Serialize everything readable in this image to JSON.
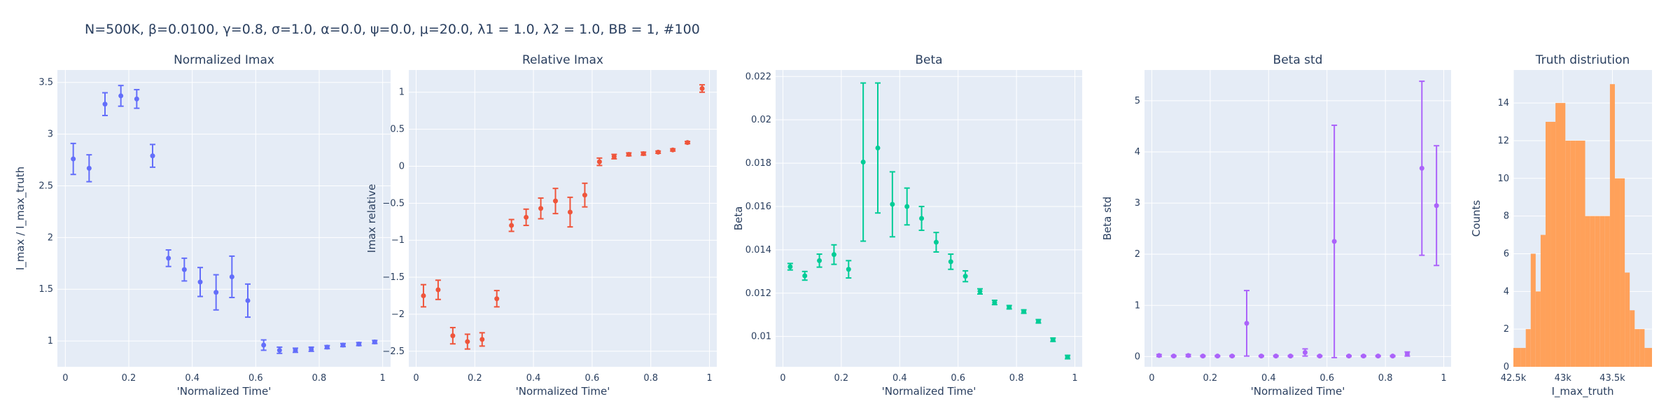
{
  "title": "N=500K, β=0.0100, γ=0.8, σ=1.0,  α=0.0, ψ=0.0, μ=20.0, λ1 = 1.0, λ2 = 1.0, BB = 1, #100",
  "colors": {
    "blue": "#636efa",
    "red": "#ef553b",
    "green": "#00cc96",
    "purple": "#ab63fa",
    "orange": "#ffa15a",
    "plot_bg": "#e5ecf6",
    "grid": "#ffffff",
    "text": "#2a3f5f"
  },
  "chart_data": [
    {
      "type": "scatter",
      "title": "Normalized Imax",
      "xlabel": "'Normalized Time'",
      "ylabel": "I_max / I_max_truth",
      "color": "blue",
      "xlim": [
        -0.025,
        1.025
      ],
      "ylim": [
        0.75,
        3.62
      ],
      "xticks": [
        0,
        0.2,
        0.4,
        0.6,
        0.8,
        1
      ],
      "xticklabels": [
        "0",
        "0.2",
        "0.4",
        "0.6",
        "0.8",
        "1"
      ],
      "yticks": [
        1,
        1.5,
        2,
        2.5,
        3,
        3.5
      ],
      "yticklabels": [
        "1",
        "1.5",
        "2",
        "2.5",
        "3",
        "3.5"
      ],
      "x": [
        0.025,
        0.075,
        0.125,
        0.175,
        0.225,
        0.275,
        0.325,
        0.375,
        0.425,
        0.475,
        0.525,
        0.575,
        0.625,
        0.675,
        0.725,
        0.775,
        0.825,
        0.875,
        0.925,
        0.975
      ],
      "y": [
        2.76,
        2.67,
        3.29,
        3.37,
        3.34,
        2.79,
        1.8,
        1.69,
        1.57,
        1.47,
        1.62,
        1.39,
        0.96,
        0.91,
        0.91,
        0.92,
        0.94,
        0.96,
        0.97,
        0.99
      ],
      "err": [
        0.15,
        0.13,
        0.11,
        0.1,
        0.09,
        0.11,
        0.08,
        0.11,
        0.14,
        0.17,
        0.2,
        0.16,
        0.05,
        0.03,
        0.02,
        0.02,
        0.015,
        0.015,
        0.015,
        0.015
      ]
    },
    {
      "type": "scatter",
      "title": "Relative Imax",
      "xlabel": "'Normalized Time'",
      "ylabel": "Imax relative",
      "color": "red",
      "xlim": [
        -0.025,
        1.025
      ],
      "ylim": [
        -2.71,
        1.3
      ],
      "xticks": [
        0,
        0.2,
        0.4,
        0.6,
        0.8,
        1
      ],
      "xticklabels": [
        "0",
        "0.2",
        "0.4",
        "0.6",
        "0.8",
        "1"
      ],
      "yticks": [
        -2.5,
        -2,
        -1.5,
        -1,
        -0.5,
        0,
        0.5,
        1
      ],
      "yticklabels": [
        "−2.5",
        "−2",
        "−1.5",
        "−1",
        "−0.5",
        "0",
        "0.5",
        "1"
      ],
      "x": [
        0.025,
        0.075,
        0.125,
        0.175,
        0.225,
        0.275,
        0.325,
        0.375,
        0.425,
        0.475,
        0.525,
        0.575,
        0.625,
        0.675,
        0.725,
        0.775,
        0.825,
        0.875,
        0.925,
        0.975
      ],
      "y": [
        -1.75,
        -1.67,
        -2.29,
        -2.37,
        -2.34,
        -1.79,
        -0.8,
        -0.69,
        -0.57,
        -0.47,
        -0.62,
        -0.39,
        0.06,
        0.13,
        0.16,
        0.17,
        0.19,
        0.22,
        0.32,
        1.05
      ],
      "err": [
        0.15,
        0.13,
        0.11,
        0.1,
        0.09,
        0.11,
        0.08,
        0.11,
        0.14,
        0.17,
        0.2,
        0.16,
        0.05,
        0.03,
        0.02,
        0.02,
        0.015,
        0.015,
        0.015,
        0.05
      ]
    },
    {
      "type": "scatter",
      "title": "Beta",
      "xlabel": "'Normalized Time'",
      "ylabel": "Beta",
      "color": "green",
      "xlim": [
        -0.025,
        1.025
      ],
      "ylim": [
        0.0086,
        0.0223
      ],
      "xticks": [
        0,
        0.2,
        0.4,
        0.6,
        0.8,
        1
      ],
      "xticklabels": [
        "0",
        "0.2",
        "0.4",
        "0.6",
        "0.8",
        "1"
      ],
      "yticks": [
        0.01,
        0.012,
        0.014,
        0.016,
        0.018,
        0.02,
        0.022
      ],
      "yticklabels": [
        "0.01",
        "0.012",
        "0.014",
        "0.016",
        "0.018",
        "0.02",
        "0.022"
      ],
      "x": [
        0.025,
        0.075,
        0.125,
        0.175,
        0.225,
        0.275,
        0.325,
        0.375,
        0.425,
        0.475,
        0.525,
        0.575,
        0.625,
        0.675,
        0.725,
        0.775,
        0.825,
        0.875,
        0.925,
        0.975
      ],
      "y": [
        0.01322,
        0.0128,
        0.0135,
        0.01378,
        0.0131,
        0.01805,
        0.0187,
        0.0161,
        0.016,
        0.01545,
        0.01435,
        0.01345,
        0.01278,
        0.01208,
        0.01157,
        0.01135,
        0.01115,
        0.0107,
        0.00985,
        0.00905
      ],
      "err": [
        0.00015,
        0.0002,
        0.0003,
        0.00045,
        0.0004,
        0.00365,
        0.003,
        0.0015,
        0.00085,
        0.00055,
        0.00045,
        0.00035,
        0.00025,
        0.00012,
        0.0001,
        8e-05,
        8e-05,
        8e-05,
        8e-05,
        8e-05
      ]
    },
    {
      "type": "scatter",
      "title": "Beta std",
      "xlabel": "'Normalized Time'",
      "ylabel": "Beta std",
      "color": "purple",
      "xlim": [
        -0.025,
        1.025
      ],
      "ylim": [
        -0.2,
        5.6
      ],
      "xticks": [
        0,
        0.2,
        0.4,
        0.6,
        0.8,
        1
      ],
      "xticklabels": [
        "0",
        "0.2",
        "0.4",
        "0.6",
        "0.8",
        "1"
      ],
      "yticks": [
        0,
        1,
        2,
        3,
        4,
        5
      ],
      "yticklabels": [
        "0",
        "1",
        "2",
        "3",
        "4",
        "5"
      ],
      "x": [
        0.025,
        0.075,
        0.125,
        0.175,
        0.225,
        0.275,
        0.325,
        0.375,
        0.425,
        0.475,
        0.525,
        0.575,
        0.625,
        0.675,
        0.725,
        0.775,
        0.825,
        0.875,
        0.925,
        0.975
      ],
      "y": [
        0.02,
        0.01,
        0.02,
        0.01,
        0.01,
        0.01,
        0.65,
        0.01,
        0.01,
        0.01,
        0.08,
        0.01,
        2.25,
        0.01,
        0.01,
        0.01,
        0.01,
        0.05,
        3.68,
        2.95
      ],
      "err": [
        0.02,
        0.01,
        0.02,
        0.01,
        0.01,
        0.01,
        0.64,
        0.01,
        0.01,
        0.01,
        0.07,
        0.01,
        2.27,
        0.01,
        0.01,
        0.01,
        0.01,
        0.04,
        1.7,
        1.17
      ]
    },
    {
      "type": "bar",
      "title": "Truth distriution",
      "xlabel": "I_max_truth",
      "ylabel": "Counts",
      "color": "orange",
      "xlim": [
        42500,
        43900
      ],
      "ylim": [
        0,
        15.75
      ],
      "xticks": [
        42500,
        43000,
        43500
      ],
      "xticklabels": [
        "42.5k",
        "43k",
        "43.5k"
      ],
      "yticks": [
        0,
        2,
        4,
        6,
        8,
        10,
        12,
        14
      ],
      "yticklabels": [
        "0",
        "2",
        "4",
        "6",
        "8",
        "10",
        "12",
        "14"
      ],
      "bin_edges": [
        42500,
        42575,
        42625,
        42675,
        42725,
        42775,
        42825,
        42875,
        42925,
        43025,
        43075,
        43125,
        43175,
        43225,
        43275,
        43325,
        43375,
        43425,
        43475,
        43525,
        43575,
        43625,
        43675,
        43725,
        43775,
        43825,
        43900
      ],
      "counts": [
        1,
        1,
        2,
        6,
        4,
        7,
        13,
        13,
        14,
        12,
        12,
        12,
        12,
        8,
        8,
        8,
        8,
        8,
        15,
        10,
        10,
        5,
        3,
        2,
        2,
        1
      ]
    }
  ]
}
